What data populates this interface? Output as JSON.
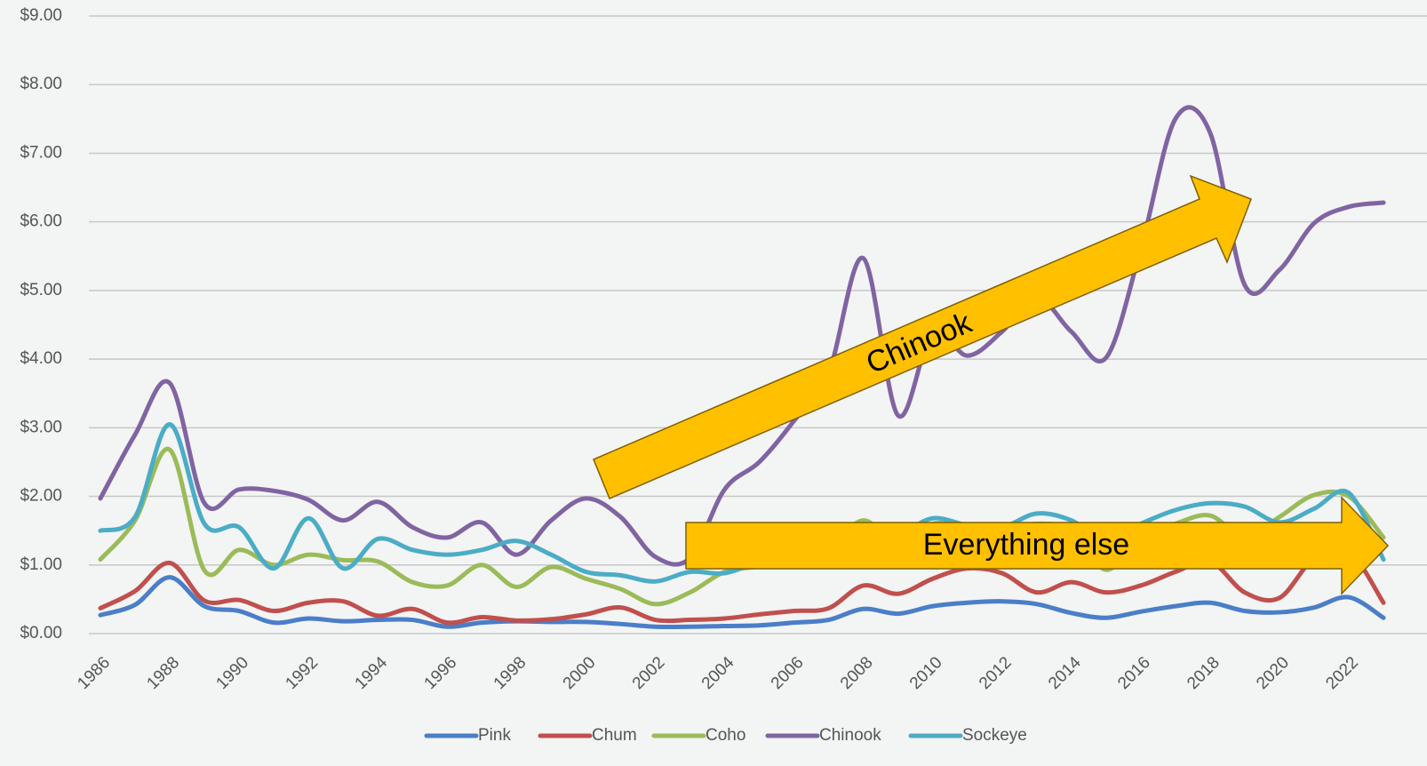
{
  "chart_data": {
    "type": "line",
    "categories": [
      "1986",
      null,
      "1988",
      null,
      "1990",
      null,
      "1992",
      null,
      "1994",
      null,
      "1996",
      null,
      "1998",
      null,
      "2000",
      null,
      "2002",
      null,
      "2004",
      null,
      "2006",
      null,
      "2008",
      null,
      "2010",
      null,
      "2012",
      null,
      "2014",
      null,
      "2016",
      null,
      "2018",
      null,
      "2020",
      null,
      "2022",
      null
    ],
    "series": [
      {
        "name": "Pink",
        "color": "#4a7ec8",
        "values": [
          0.27,
          0.42,
          0.82,
          0.4,
          0.33,
          0.16,
          0.22,
          0.18,
          0.2,
          0.2,
          0.1,
          0.16,
          0.18,
          0.17,
          0.17,
          0.14,
          0.1,
          0.1,
          0.11,
          0.12,
          0.16,
          0.2,
          0.36,
          0.29,
          0.4,
          0.45,
          0.47,
          0.43,
          0.3,
          0.23,
          0.32,
          0.4,
          0.45,
          0.33,
          0.31,
          0.38,
          0.53,
          0.23
        ]
      },
      {
        "name": "Chum",
        "color": "#c0504d",
        "values": [
          0.37,
          0.62,
          1.03,
          0.48,
          0.49,
          0.33,
          0.45,
          0.47,
          0.26,
          0.36,
          0.16,
          0.24,
          0.19,
          0.21,
          0.28,
          0.38,
          0.2,
          0.2,
          0.22,
          0.28,
          0.33,
          0.37,
          0.7,
          0.58,
          0.8,
          0.95,
          0.88,
          0.6,
          0.75,
          0.6,
          0.7,
          0.9,
          1.05,
          0.6,
          0.52,
          1.1,
          1.2,
          0.45
        ]
      },
      {
        "name": "Coho",
        "color": "#9bbb59",
        "values": [
          1.08,
          1.65,
          2.68,
          0.92,
          1.22,
          1.0,
          1.15,
          1.07,
          1.05,
          0.75,
          0.7,
          1.0,
          0.68,
          0.97,
          0.8,
          0.65,
          0.43,
          0.6,
          0.9,
          0.98,
          1.1,
          1.25,
          1.65,
          1.3,
          1.6,
          1.55,
          1.5,
          1.6,
          1.5,
          0.93,
          1.4,
          1.6,
          1.72,
          1.4,
          1.7,
          2.02,
          2.0,
          1.4
        ]
      },
      {
        "name": "Chinook",
        "color": "#8064a2",
        "values": [
          1.97,
          2.9,
          3.65,
          1.9,
          2.1,
          2.08,
          1.95,
          1.65,
          1.92,
          1.55,
          1.4,
          1.62,
          1.15,
          1.65,
          1.97,
          1.7,
          1.12,
          1.1,
          2.1,
          2.5,
          3.1,
          3.8,
          5.47,
          3.18,
          4.4,
          4.05,
          4.4,
          4.9,
          4.4,
          4.02,
          5.6,
          7.5,
          7.3,
          5.08,
          5.3,
          5.98,
          6.22,
          6.28
        ]
      },
      {
        "name": "Sockeye",
        "color": "#4bacc6",
        "values": [
          1.5,
          1.7,
          3.05,
          1.6,
          1.55,
          0.95,
          1.68,
          0.95,
          1.38,
          1.22,
          1.15,
          1.22,
          1.35,
          1.15,
          0.9,
          0.85,
          0.76,
          0.9,
          0.88,
          1.05,
          1.2,
          1.3,
          1.5,
          1.45,
          1.68,
          1.58,
          1.55,
          1.75,
          1.65,
          1.35,
          1.6,
          1.8,
          1.9,
          1.85,
          1.62,
          1.82,
          2.05,
          1.08
        ]
      }
    ],
    "ylim": [
      0,
      9
    ],
    "yticks": [
      {
        "value": 0,
        "label": "$0.00"
      },
      {
        "value": 1,
        "label": "$1.00"
      },
      {
        "value": 2,
        "label": "$2.00"
      },
      {
        "value": 3,
        "label": "$3.00"
      },
      {
        "value": 4,
        "label": "$4.00"
      },
      {
        "value": 5,
        "label": "$5.00"
      },
      {
        "value": 6,
        "label": "$6.00"
      },
      {
        "value": 7,
        "label": "$7.00"
      },
      {
        "value": 8,
        "label": "$8.00"
      },
      {
        "value": 9,
        "label": "$9.00"
      }
    ],
    "grid": true,
    "annotations": [
      "Chinook",
      "Everything else"
    ]
  }
}
